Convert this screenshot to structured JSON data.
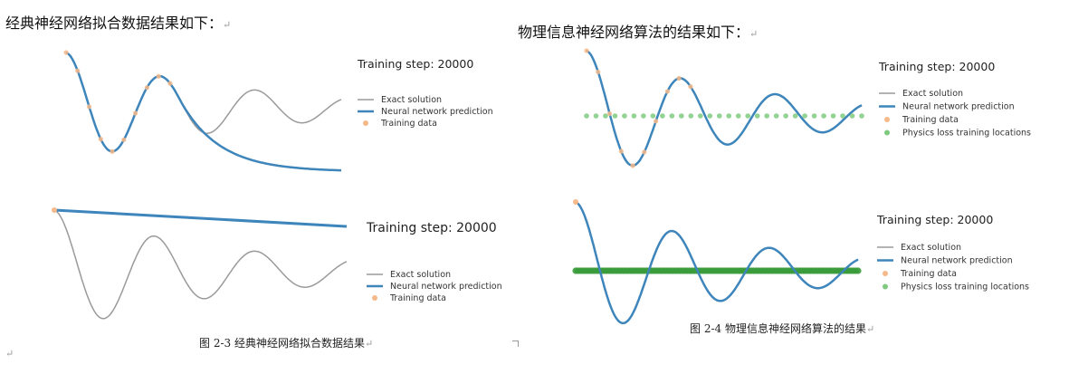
{
  "left": {
    "heading": "经典神经网络拟合数据结果如下：",
    "caption": "图 2-3  经典神经网络拟合数据结果",
    "return_mark": "↵"
  },
  "right": {
    "heading": "物理信息神经网络算法的结果如下：",
    "caption": "图 2-4  物理信息神经网络算法的结果",
    "return_mark": "↵"
  },
  "bottom_return_mark": "↵",
  "colors": {
    "exact": "#9a9a9a",
    "nn": "#3d85bb",
    "train": "#f5b98a",
    "physics": "#7fca7f",
    "physics_dense": "#3a9b3a"
  },
  "chart_data": [
    {
      "type": "line",
      "id": "classic-fit",
      "title": "Training step: 20000",
      "legend": [
        "Exact solution",
        "Neural network prediction",
        "Training data"
      ],
      "legend_placement": "right",
      "axes": "hidden",
      "description_series": [
        {
          "name": "Exact solution",
          "kind": "damped oscillation",
          "amplitude": 1.0,
          "periods": 2.9,
          "decay": 1.0
        },
        {
          "name": "Neural network prediction",
          "kind": "fits training data then decays to baseline"
        },
        {
          "name": "Training data",
          "kind": "points on first ~40% of domain",
          "count": 10
        }
      ]
    },
    {
      "type": "line",
      "id": "classic-unfit",
      "title": "Training step: 20000",
      "legend": [
        "Exact solution",
        "Neural network prediction",
        "Training data"
      ],
      "legend_placement": "right",
      "axes": "hidden",
      "description_series": [
        {
          "name": "Exact solution",
          "kind": "damped oscillation"
        },
        {
          "name": "Neural network prediction",
          "kind": "near-flat slightly declining line"
        },
        {
          "name": "Training data",
          "kind": "single point at start",
          "count": 1
        }
      ]
    },
    {
      "type": "line",
      "id": "pinn-fit",
      "title": "Training step: 20000",
      "legend": [
        "Exact solution",
        "Neural network prediction",
        "Training data",
        "Physics loss training locations"
      ],
      "legend_placement": "right",
      "axes": "hidden",
      "description_series": [
        {
          "name": "Exact solution",
          "kind": "damped oscillation"
        },
        {
          "name": "Neural network prediction",
          "kind": "matches exact solution across domain"
        },
        {
          "name": "Training data",
          "kind": "points on first ~40% of domain",
          "count": 10
        },
        {
          "name": "Physics loss training locations",
          "kind": "evenly spaced points along midline",
          "count": 30
        }
      ]
    },
    {
      "type": "line",
      "id": "pinn-unfit",
      "title": "Training step: 20000",
      "legend": [
        "Exact solution",
        "Neural network prediction",
        "Training data",
        "Physics loss training locations"
      ],
      "legend_placement": "right",
      "axes": "hidden",
      "description_series": [
        {
          "name": "Exact solution",
          "kind": "damped oscillation"
        },
        {
          "name": "Neural network prediction",
          "kind": "damped oscillation overlapping exact solution"
        },
        {
          "name": "Training data",
          "kind": "single point at start",
          "count": 1
        },
        {
          "name": "Physics loss training locations",
          "kind": "dense points along midline",
          "count": 120
        }
      ]
    }
  ]
}
